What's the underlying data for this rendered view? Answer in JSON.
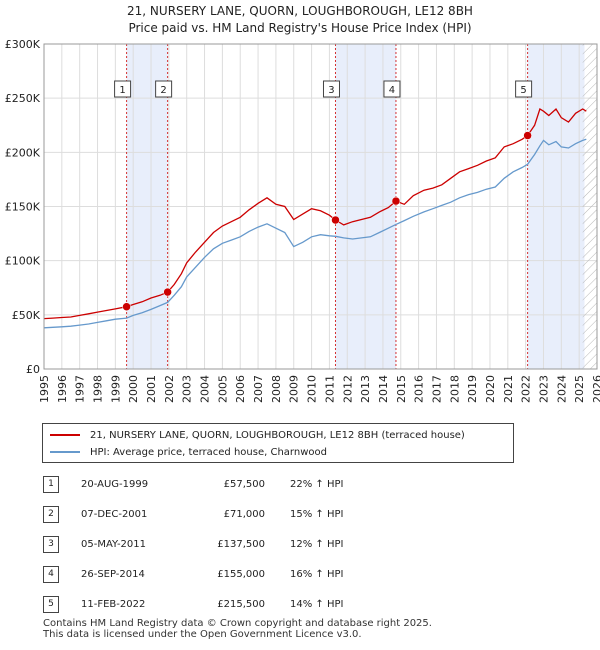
{
  "chart_data": {
    "type": "line",
    "title": [
      "21, NURSERY LANE, QUORN, LOUGHBOROUGH, LE12 8BH",
      "Price paid vs. HM Land Registry's House Price Index (HPI)"
    ],
    "x_range": [
      1995,
      2026
    ],
    "ylim": [
      0,
      300000
    ],
    "y_ticks": [
      0,
      50000,
      100000,
      150000,
      200000,
      250000,
      300000
    ],
    "y_tick_labels": [
      "£0",
      "£50K",
      "£100K",
      "£150K",
      "£200K",
      "£250K",
      "£300K"
    ],
    "x_ticks": [
      1995,
      1996,
      1997,
      1998,
      1999,
      2000,
      2001,
      2002,
      2003,
      2004,
      2005,
      2006,
      2007,
      2008,
      2009,
      2010,
      2011,
      2012,
      2013,
      2014,
      2015,
      2016,
      2017,
      2018,
      2019,
      2020,
      2021,
      2022,
      2023,
      2024,
      2025,
      2026
    ],
    "grid": true,
    "hatch_from": 2025.2,
    "shaded_periods": [
      [
        1999.63,
        2001.93
      ],
      [
        2011.34,
        2014.73
      ],
      [
        2022.11,
        2025.3
      ]
    ],
    "series": [
      {
        "name": "21, NURSERY LANE, QUORN, LOUGHBOROUGH, LE12 8BH (terraced house)",
        "color": "#cc0000",
        "points": [
          [
            1995,
            46500
          ],
          [
            1995.5,
            47000
          ],
          [
            1996,
            47500
          ],
          [
            1996.5,
            48000
          ],
          [
            1997,
            49500
          ],
          [
            1997.5,
            51000
          ],
          [
            1998,
            52500
          ],
          [
            1998.5,
            54000
          ],
          [
            1999,
            55500
          ],
          [
            1999.63,
            57500
          ],
          [
            2000,
            59500
          ],
          [
            2000.5,
            62000
          ],
          [
            2001,
            65500
          ],
          [
            2001.5,
            68000
          ],
          [
            2001.93,
            71000
          ],
          [
            2002.3,
            78000
          ],
          [
            2002.7,
            88000
          ],
          [
            2003,
            98000
          ],
          [
            2003.5,
            108000
          ],
          [
            2004,
            117000
          ],
          [
            2004.5,
            126000
          ],
          [
            2005,
            132000
          ],
          [
            2005.5,
            136000
          ],
          [
            2006,
            140000
          ],
          [
            2006.5,
            147000
          ],
          [
            2007,
            153000
          ],
          [
            2007.5,
            158000
          ],
          [
            2008,
            152000
          ],
          [
            2008.5,
            150000
          ],
          [
            2009,
            138000
          ],
          [
            2009.5,
            143000
          ],
          [
            2010,
            148000
          ],
          [
            2010.5,
            146000
          ],
          [
            2011,
            142000
          ],
          [
            2011.34,
            137500
          ],
          [
            2011.8,
            133000
          ],
          [
            2012.3,
            136000
          ],
          [
            2012.8,
            138000
          ],
          [
            2013.3,
            140000
          ],
          [
            2013.8,
            145000
          ],
          [
            2014.3,
            149000
          ],
          [
            2014.73,
            155000
          ],
          [
            2015.2,
            152000
          ],
          [
            2015.7,
            160000
          ],
          [
            2016.3,
            165000
          ],
          [
            2016.8,
            167000
          ],
          [
            2017.3,
            170000
          ],
          [
            2017.8,
            176000
          ],
          [
            2018.3,
            182000
          ],
          [
            2018.8,
            185000
          ],
          [
            2019.3,
            188000
          ],
          [
            2019.8,
            192000
          ],
          [
            2020.3,
            195000
          ],
          [
            2020.8,
            205000
          ],
          [
            2021.3,
            208000
          ],
          [
            2021.8,
            212000
          ],
          [
            2022.11,
            215500
          ],
          [
            2022.5,
            225000
          ],
          [
            2022.8,
            240000
          ],
          [
            2023,
            238000
          ],
          [
            2023.3,
            234000
          ],
          [
            2023.7,
            240000
          ],
          [
            2024,
            232000
          ],
          [
            2024.4,
            228000
          ],
          [
            2024.8,
            236000
          ],
          [
            2025.2,
            240000
          ],
          [
            2025.4,
            238000
          ]
        ]
      },
      {
        "name": "HPI: Average price, terraced house, Charnwood",
        "color": "#6699cc",
        "points": [
          [
            1995,
            38000
          ],
          [
            1995.5,
            38500
          ],
          [
            1996,
            39000
          ],
          [
            1996.5,
            39500
          ],
          [
            1997,
            40500
          ],
          [
            1997.5,
            41500
          ],
          [
            1998,
            43000
          ],
          [
            1998.5,
            44500
          ],
          [
            1999,
            46000
          ],
          [
            1999.63,
            47000
          ],
          [
            2000,
            49500
          ],
          [
            2000.5,
            52000
          ],
          [
            2001,
            55000
          ],
          [
            2001.5,
            58500
          ],
          [
            2001.93,
            61500
          ],
          [
            2002.3,
            68000
          ],
          [
            2002.7,
            76000
          ],
          [
            2003,
            85000
          ],
          [
            2003.5,
            94000
          ],
          [
            2004,
            103000
          ],
          [
            2004.5,
            111000
          ],
          [
            2005,
            116000
          ],
          [
            2005.5,
            119000
          ],
          [
            2006,
            122000
          ],
          [
            2006.5,
            127000
          ],
          [
            2007,
            131000
          ],
          [
            2007.5,
            134000
          ],
          [
            2008,
            130000
          ],
          [
            2008.5,
            126000
          ],
          [
            2009,
            113000
          ],
          [
            2009.5,
            117000
          ],
          [
            2010,
            122000
          ],
          [
            2010.5,
            124000
          ],
          [
            2011,
            123000
          ],
          [
            2011.34,
            122500
          ],
          [
            2011.8,
            121000
          ],
          [
            2012.3,
            120000
          ],
          [
            2012.8,
            121000
          ],
          [
            2013.3,
            122000
          ],
          [
            2013.8,
            126000
          ],
          [
            2014.3,
            130000
          ],
          [
            2014.73,
            133500
          ],
          [
            2015.2,
            137000
          ],
          [
            2015.7,
            141000
          ],
          [
            2016.3,
            145000
          ],
          [
            2016.8,
            148000
          ],
          [
            2017.3,
            151000
          ],
          [
            2017.8,
            154000
          ],
          [
            2018.3,
            158000
          ],
          [
            2018.8,
            161000
          ],
          [
            2019.3,
            163000
          ],
          [
            2019.8,
            166000
          ],
          [
            2020.3,
            168000
          ],
          [
            2020.8,
            176000
          ],
          [
            2021.3,
            182000
          ],
          [
            2021.8,
            186000
          ],
          [
            2022.11,
            189000
          ],
          [
            2022.5,
            198000
          ],
          [
            2022.8,
            206000
          ],
          [
            2023,
            211000
          ],
          [
            2023.3,
            207000
          ],
          [
            2023.7,
            210000
          ],
          [
            2024,
            205000
          ],
          [
            2024.4,
            204000
          ],
          [
            2024.8,
            208000
          ],
          [
            2025.2,
            211000
          ],
          [
            2025.4,
            212000
          ]
        ]
      }
    ],
    "sales": [
      {
        "label": "1",
        "x": 1999.63,
        "value": 57500
      },
      {
        "label": "2",
        "x": 2001.93,
        "value": 71000
      },
      {
        "label": "3",
        "x": 2011.34,
        "value": 137500
      },
      {
        "label": "4",
        "x": 2014.73,
        "value": 155000
      },
      {
        "label": "5",
        "x": 2022.11,
        "value": 215500
      }
    ]
  },
  "legend": {
    "property_label": "21, NURSERY LANE, QUORN, LOUGHBOROUGH, LE12 8BH (terraced house)",
    "hpi_label": "HPI: Average price, terraced house, Charnwood"
  },
  "colors": {
    "property": "#cc0000",
    "hpi": "#6699cc",
    "shade": "#e8eefb",
    "marker_line": "#cc0000"
  },
  "table": [
    {
      "num": "1",
      "date": "20-AUG-1999",
      "price": "£57,500",
      "hpi": "22% ↑ HPI"
    },
    {
      "num": "2",
      "date": "07-DEC-2001",
      "price": "£71,000",
      "hpi": "15% ↑ HPI"
    },
    {
      "num": "3",
      "date": "05-MAY-2011",
      "price": "£137,500",
      "hpi": "12% ↑ HPI"
    },
    {
      "num": "4",
      "date": "26-SEP-2014",
      "price": "£155,000",
      "hpi": "16% ↑ HPI"
    },
    {
      "num": "5",
      "date": "11-FEB-2022",
      "price": "£215,500",
      "hpi": "14% ↑ HPI"
    }
  ],
  "footer": {
    "line1": "Contains HM Land Registry data © Crown copyright and database right 2025.",
    "line2": "This data is licensed under the Open Government Licence v3.0."
  }
}
